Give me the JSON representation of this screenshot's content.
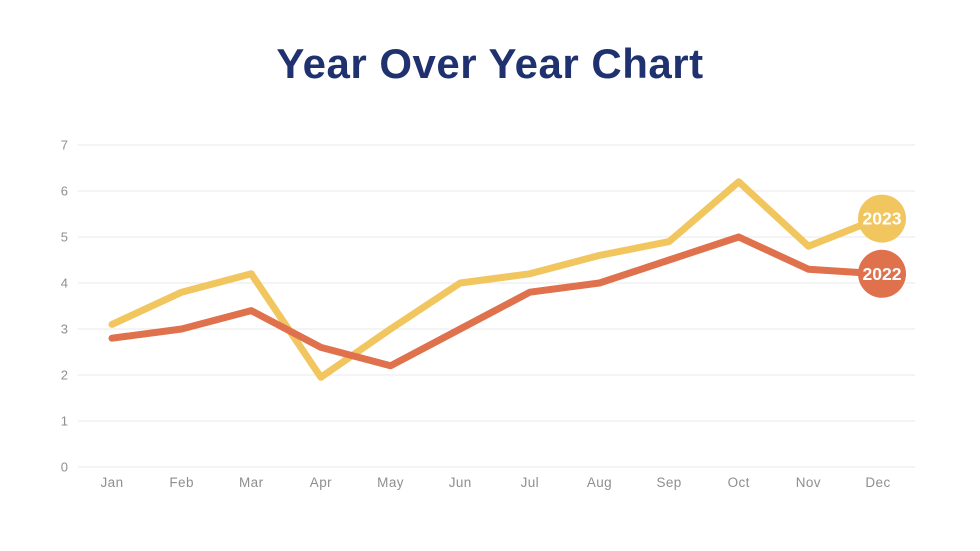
{
  "page": {
    "background_color": "#ffffff"
  },
  "title": {
    "text": "Year Over Year Chart",
    "color": "#1F326F"
  },
  "chart_data": {
    "type": "line",
    "title": "Year Over Year Chart",
    "categories": [
      "Jan",
      "Feb",
      "Mar",
      "Apr",
      "May",
      "Jun",
      "Jul",
      "Aug",
      "Sep",
      "Oct",
      "Nov",
      "Dec"
    ],
    "series": [
      {
        "name": "2023",
        "color": "#F2C65F",
        "values": [
          3.1,
          3.8,
          4.2,
          1.95,
          3.0,
          4.0,
          4.2,
          4.6,
          4.9,
          6.2,
          4.8,
          5.4
        ]
      },
      {
        "name": "2022",
        "color": "#E0714D",
        "values": [
          2.8,
          3.0,
          3.4,
          2.6,
          2.2,
          3.0,
          3.8,
          4.0,
          4.5,
          5.0,
          4.3,
          4.2
        ]
      }
    ],
    "xlabel": "",
    "ylabel": "",
    "ylim": [
      0,
      7
    ],
    "yticks": [
      0,
      1,
      2,
      3,
      4,
      5,
      6,
      7
    ],
    "grid": true,
    "grid_color": "#E8E8E8",
    "axis_label_color": "#8F8F8F",
    "legend_position": "end-of-line-badges",
    "badge_text_color": "#FFFFFF",
    "line_width": 7
  }
}
